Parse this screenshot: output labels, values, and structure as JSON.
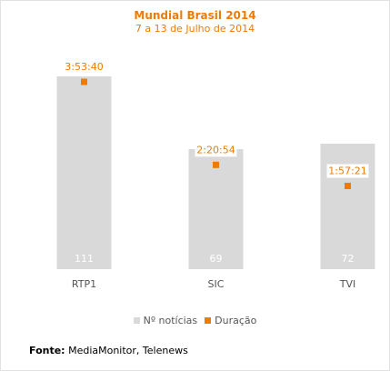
{
  "chart_data": {
    "type": "bar",
    "title": "Mundial Brasil 2014",
    "subtitle": "7 a 13 de Julho de 2014",
    "categories": [
      "RTP1",
      "SIC",
      "TVI"
    ],
    "series": [
      {
        "name": "Nº notícias",
        "type": "bar",
        "color": "#d9d9d9",
        "values": [
          111,
          69,
          72
        ],
        "labels": [
          "111",
          "69",
          "72"
        ]
      },
      {
        "name": "Duração",
        "type": "scatter",
        "color": "#f07b00",
        "values": [
          "3:53:40",
          "2:20:54",
          "1:57:21"
        ],
        "labels": [
          "3:53:40",
          "2:20:54",
          "1:57:21"
        ]
      }
    ],
    "legend_position": "bottom",
    "grid": false
  },
  "source": {
    "label": "Fonte:",
    "text": "MediaMonitor, Telenews"
  }
}
